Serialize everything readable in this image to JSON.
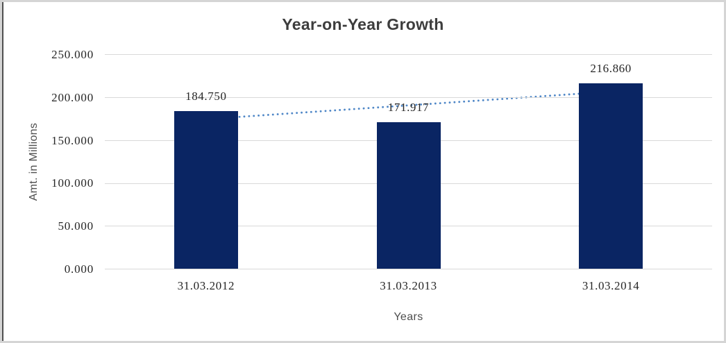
{
  "window": {
    "background": "#ffffff",
    "frame_border_color": "#d5d5d5",
    "left_edge_color": "#4f4f4f"
  },
  "chart_data": {
    "type": "bar",
    "title": "Year-on-Year Growth",
    "categories": [
      "31.03.2012",
      "31.03.2013",
      "31.03.2014"
    ],
    "values": [
      184.75,
      171.917,
      216.86
    ],
    "data_labels": [
      "184.750",
      "171.917",
      "216.860"
    ],
    "xlabel": "Years",
    "ylabel": "Amt. in Millions",
    "ylim": [
      0,
      250
    ],
    "ytick_labels": [
      "0.000",
      "50.000",
      "100.000",
      "150.000",
      "200.000",
      "250.000"
    ],
    "grid": "horizontal",
    "legend": "none",
    "bar_color": "#0a2563",
    "gridline_color": "#d9d9d9",
    "title_color": "#3d3d3d",
    "label_color": "#262626",
    "axis_title_color": "#4d4d4d",
    "trendline": {
      "type": "linear",
      "style": "dotted",
      "color": "#4f87c7"
    }
  }
}
